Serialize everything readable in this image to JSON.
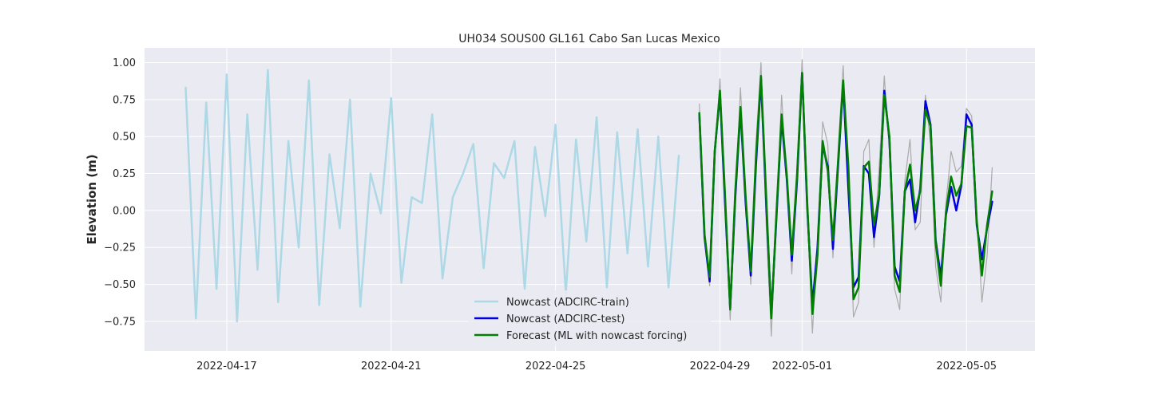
{
  "chart_data": {
    "type": "line",
    "title": "UH034 SOUS00 GL161 Cabo San Lucas Mexico",
    "xlabel": "",
    "ylabel": "Elevation (m)",
    "xlim": [
      "2022-04-15T00:00",
      "2022-05-06T16:00"
    ],
    "ylim": [
      -0.95,
      1.1
    ],
    "x_ticks": [
      "2022-04-17",
      "2022-04-21",
      "2022-04-25",
      "2022-04-29",
      "2022-05-01",
      "2022-05-05"
    ],
    "y_ticks": [
      -0.75,
      -0.5,
      -0.25,
      0.0,
      0.25,
      0.5,
      0.75,
      1.0
    ],
    "y_tick_labels": [
      "−0.75",
      "−0.50",
      "−0.25",
      "0.00",
      "0.25",
      "0.50",
      "0.75",
      "1.00"
    ],
    "grid": true,
    "legend_position": "lower-center",
    "series": [
      {
        "name": "Nowcast (ADCIRC-train)",
        "color": "#add8e6",
        "x_start": "2022-04-16T00:00",
        "step_hours": 6,
        "values": [
          0.83,
          -0.73,
          0.73,
          -0.53,
          0.92,
          -0.75,
          0.65,
          -0.4,
          0.95,
          -0.62,
          0.47,
          -0.25,
          0.88,
          -0.64,
          0.38,
          -0.12,
          0.75,
          -0.65,
          0.25,
          -0.02,
          0.76,
          -0.49,
          0.09,
          0.05,
          0.65,
          -0.46,
          0.09,
          0.25,
          0.45,
          -0.39,
          0.32,
          0.22,
          0.47,
          -0.53,
          0.43,
          -0.04,
          0.58,
          -0.56,
          0.48,
          -0.21,
          0.63,
          -0.52,
          0.53,
          -0.29,
          0.55,
          -0.38,
          0.5,
          -0.52,
          0.37
        ]
      },
      {
        "name": "",
        "color": "#aaaaaa",
        "x_start": "2022-04-28T12:00",
        "step_hours": 3,
        "values": [
          0.72,
          -0.15,
          -0.51,
          0.35,
          0.89,
          0.15,
          -0.74,
          0.09,
          0.83,
          0.15,
          -0.5,
          0.45,
          1.0,
          -0.1,
          -0.85,
          -0.05,
          0.78,
          0.2,
          -0.43,
          0.3,
          1.02,
          0.0,
          -0.83,
          -0.18,
          0.6,
          0.45,
          -0.32,
          0.4,
          0.98,
          0.2,
          -0.72,
          -0.62,
          0.4,
          0.48,
          -0.25,
          0.3,
          0.91,
          0.4,
          -0.53,
          -0.67,
          0.2,
          0.48,
          -0.13,
          -0.08,
          0.78,
          0.45,
          -0.38,
          -0.62,
          0.05,
          0.4,
          0.26,
          0.3,
          0.69,
          0.64,
          -0.02,
          -0.62,
          -0.31,
          0.29
        ]
      },
      {
        "name": "Nowcast (ADCIRC-test)",
        "color": "#0000dd",
        "x_start": "2022-04-28T12:00",
        "step_hours": 3,
        "values": [
          0.65,
          -0.18,
          -0.48,
          0.4,
          0.79,
          0.05,
          -0.66,
          0.1,
          0.68,
          0.06,
          -0.44,
          0.3,
          0.89,
          0.05,
          -0.71,
          -0.05,
          0.62,
          0.22,
          -0.34,
          0.2,
          0.93,
          0.02,
          -0.64,
          -0.25,
          0.44,
          0.3,
          -0.26,
          0.3,
          0.86,
          0.15,
          -0.52,
          -0.45,
          0.3,
          0.25,
          -0.18,
          0.1,
          0.81,
          0.48,
          -0.38,
          -0.48,
          0.13,
          0.21,
          -0.08,
          0.15,
          0.74,
          0.58,
          -0.2,
          -0.45,
          -0.03,
          0.16,
          0.0,
          0.17,
          0.65,
          0.58,
          -0.1,
          -0.33,
          -0.12,
          0.06
        ]
      },
      {
        "name": "Forecast (ML with nowcast forcing)",
        "color": "#008000",
        "x_start": "2022-04-28T12:00",
        "step_hours": 3,
        "values": [
          0.66,
          -0.16,
          -0.45,
          0.4,
          0.81,
          0.1,
          -0.67,
          0.14,
          0.7,
          0.1,
          -0.41,
          0.35,
          0.91,
          0.1,
          -0.73,
          -0.02,
          0.65,
          0.25,
          -0.3,
          0.24,
          0.93,
          0.05,
          -0.7,
          -0.3,
          0.47,
          0.27,
          -0.2,
          0.33,
          0.88,
          0.3,
          -0.6,
          -0.52,
          0.29,
          0.33,
          -0.1,
          0.11,
          0.78,
          0.5,
          -0.44,
          -0.55,
          0.13,
          0.31,
          0.0,
          0.13,
          0.68,
          0.57,
          -0.22,
          -0.51,
          -0.01,
          0.23,
          0.1,
          0.18,
          0.57,
          0.56,
          -0.07,
          -0.44,
          -0.1,
          0.13
        ]
      }
    ]
  }
}
